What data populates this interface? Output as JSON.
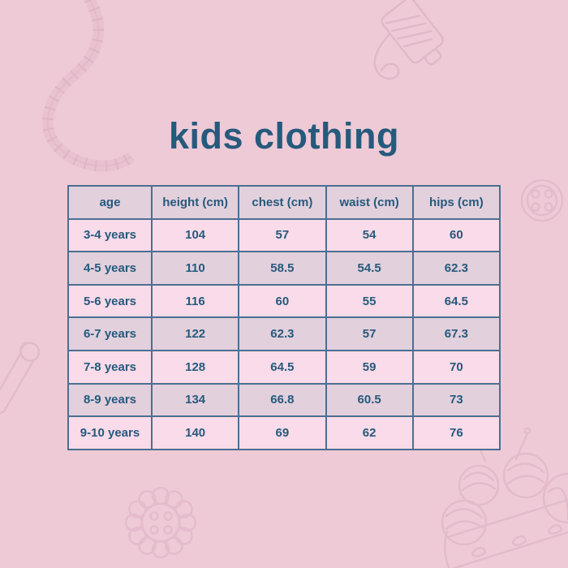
{
  "page": {
    "title": "kids clothing",
    "colors": {
      "background": "#eecad7",
      "panel_pink": "#f9dbe9",
      "panel_lavender": "#e2d0dd",
      "border": "#4c6f92",
      "text": "#265a7c",
      "doodle": "#cf9fb4"
    }
  },
  "chart_data": {
    "type": "table",
    "title": "kids clothing",
    "columns": [
      "age",
      "height (cm)",
      "chest (cm)",
      "waist (cm)",
      "hips (cm)"
    ],
    "rows": [
      [
        "3-4 years",
        "104",
        "57",
        "54",
        "60"
      ],
      [
        "4-5 years",
        "110",
        "58.5",
        "54.5",
        "62.3"
      ],
      [
        "5-6 years",
        "116",
        "60",
        "55",
        "64.5"
      ],
      [
        "6-7 years",
        "122",
        "62.3",
        "57",
        "67.3"
      ],
      [
        "7-8 years",
        "128",
        "64.5",
        "59",
        "70"
      ],
      [
        "8-9 years",
        "134",
        "66.8",
        "60.5",
        "73"
      ],
      [
        "9-10 years",
        "140",
        "69",
        "62",
        "76"
      ]
    ],
    "layout_hints": {
      "header_fill": "lavender",
      "row_striping": [
        "pink",
        "lavender"
      ],
      "grid": "on"
    }
  },
  "decorations": [
    {
      "name": "measuring-tape-doodle",
      "position": "top-left"
    },
    {
      "name": "thread-spool-doodle",
      "position": "top-right"
    },
    {
      "name": "button-doodle",
      "position": "right"
    },
    {
      "name": "safety-pin-doodle",
      "position": "left"
    },
    {
      "name": "flower-button-doodle",
      "position": "bottom-left"
    },
    {
      "name": "yarn-basket-doodle",
      "position": "bottom-right"
    }
  ]
}
